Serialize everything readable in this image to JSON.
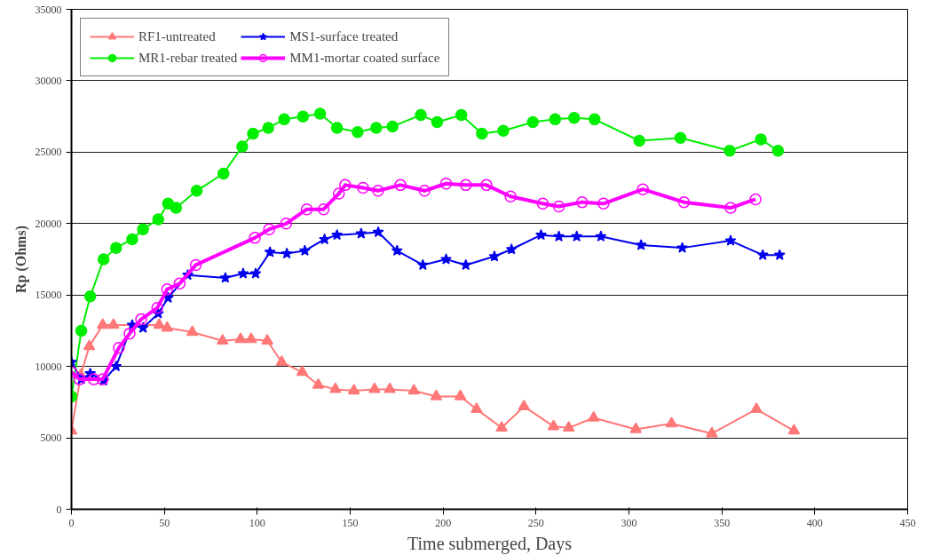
{
  "chart_data": {
    "type": "line",
    "xlabel": "Time submerged, Days",
    "ylabel": "Rp (Ohms)",
    "xlim": [
      0,
      450
    ],
    "ylim": [
      0,
      35000
    ],
    "xticks": [
      0,
      50,
      100,
      150,
      200,
      250,
      300,
      350,
      400,
      450
    ],
    "yticks": [
      0,
      5000,
      10000,
      15000,
      20000,
      25000,
      30000,
      35000
    ],
    "grid": "y",
    "legend": "top left",
    "line_style": "solid",
    "series": [
      {
        "name": "RF1-untreated",
        "color": "#ff7777",
        "marker": "triangle",
        "x": [
          0,
          5,
          9.6,
          16.8,
          22.6,
          47.2,
          51.5,
          65,
          81.3,
          91,
          96.7,
          105.4,
          113.1,
          124.2,
          132.8,
          142,
          152,
          163.1,
          171.3,
          184.3,
          196.3,
          209.3,
          218,
          231.5,
          243.5,
          259.4,
          267.6,
          281,
          303.7,
          322.9,
          344.6,
          368.6,
          388.8
        ],
        "values": [
          5500,
          9400,
          11400,
          12900,
          12900,
          12900,
          12700,
          12400,
          11800,
          11900,
          11900,
          11800,
          10300,
          9600,
          8700,
          8400,
          8300,
          8400,
          8400,
          8300,
          7900,
          7900,
          7000,
          5700,
          7200,
          5800,
          5700,
          6400,
          5600,
          6000,
          5300,
          7000,
          5500
        ]
      },
      {
        "name": "MR1-rebar treated",
        "color": "#00ee00",
        "marker": "circle",
        "x": [
          0,
          5.3,
          10.1,
          17.3,
          24,
          32.7,
          38.5,
          46.7,
          52,
          56.3,
          67.4,
          81.8,
          91.9,
          97.7,
          105.9,
          114.5,
          124.6,
          133.8,
          142.9,
          154,
          164,
          172.8,
          188,
          196.8,
          209.8,
          220.9,
          232.4,
          248.3,
          260.3,
          270.5,
          281.5,
          305.6,
          327.7,
          354.2,
          371,
          380.2
        ],
        "values": [
          7900,
          12500,
          14900,
          17500,
          18300,
          18900,
          19600,
          20300,
          21400,
          21100,
          22300,
          23500,
          25400,
          26300,
          26700,
          27300,
          27500,
          27700,
          26700,
          26400,
          26700,
          26800,
          27600,
          27100,
          27600,
          26300,
          26500,
          27100,
          27300,
          27400,
          27300,
          25800,
          26000,
          25100,
          25900,
          25100
        ]
      },
      {
        "name": "MS1-surface treated",
        "color": "#0000ee",
        "marker": "star",
        "x": [
          0,
          5.3,
          10.1,
          17.3,
          24,
          32.7,
          38.5,
          46.7,
          52,
          62.6,
          82.8,
          92.4,
          99.1,
          106.8,
          115.9,
          125.6,
          136.2,
          142.9,
          155.9,
          165.1,
          175.2,
          189.1,
          201.6,
          212.2,
          227.6,
          236.8,
          252.7,
          262.3,
          271.9,
          284.9,
          306.5,
          328.7,
          354.7,
          372,
          381.1
        ],
        "values": [
          10300,
          9100,
          9500,
          9000,
          10000,
          12900,
          12700,
          13700,
          14800,
          16400,
          16200,
          16500,
          16500,
          18000,
          17900,
          18100,
          18900,
          19200,
          19300,
          19400,
          18100,
          17100,
          17500,
          17100,
          17700,
          18200,
          19200,
          19100,
          19100,
          19100,
          18500,
          18300,
          18800,
          17800,
          17800
        ]
      },
      {
        "name": "MM1-mortar coated surface",
        "color": "#ff00ff",
        "marker": "circle",
        "x": [
          0,
          4.3,
          12,
          16.8,
          25.5,
          31.3,
          37.5,
          46.2,
          51.5,
          58.2,
          66.9,
          98.7,
          106.4,
          115.5,
          126.6,
          135.7,
          143.9,
          147.3,
          156.9,
          165,
          177,
          190,
          201.6,
          212.2,
          223.3,
          236.3,
          253.6,
          262.3,
          274.8,
          286.3,
          307.5,
          329.6,
          354.7,
          368.1
        ],
        "values": [
          9600,
          9100,
          9100,
          9100,
          11300,
          12300,
          13300,
          14100,
          15400,
          15800,
          17100,
          19000,
          19600,
          20000,
          21000,
          21000,
          22100,
          22700,
          22500,
          22300,
          22700,
          22300,
          22800,
          22700,
          22700,
          21900,
          21400,
          21200,
          21500,
          21400,
          22400,
          21500,
          21100,
          21700
        ]
      }
    ]
  }
}
